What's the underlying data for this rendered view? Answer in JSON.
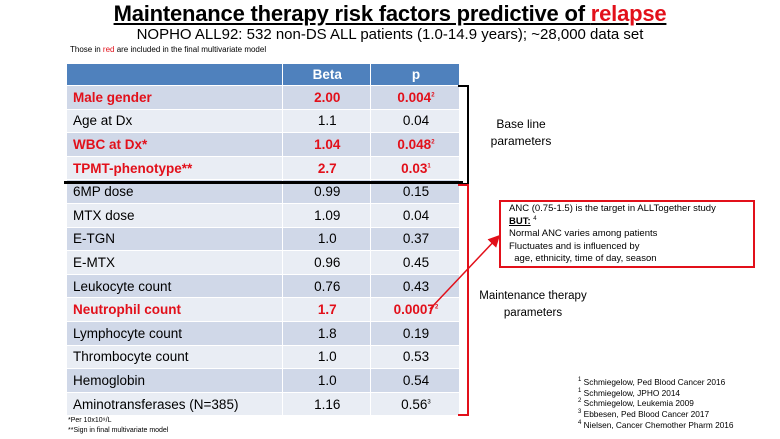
{
  "title": {
    "main": "Maintenance therapy risk factors predictive of ",
    "highlight": "relapse"
  },
  "subtitle": "NOPHO ALL92: 532 non-DS ALL patients (1.0-14.9 years); ~28,000 data set",
  "top_note": {
    "before": "Those in ",
    "highlight": "red",
    "after": " are included in the final multivariate model"
  },
  "table": {
    "headers": [
      "",
      "Beta",
      "p"
    ],
    "rows": [
      {
        "factor": "Male gender",
        "beta": "2.00",
        "p": "0.004",
        "sup": "2",
        "highlight": true
      },
      {
        "factor": "Age at Dx",
        "beta": "1.1",
        "p": "0.04",
        "sup": "",
        "highlight": false
      },
      {
        "factor": "WBC at Dx*",
        "beta": "1.04",
        "p": "0.048",
        "sup": "2",
        "highlight": true
      },
      {
        "factor": "TPMT-phenotype**",
        "beta": "2.7",
        "p": "0.03",
        "sup": "1",
        "highlight": true
      },
      {
        "factor": "6MP dose",
        "beta": "0.99",
        "p": "0.15",
        "sup": "",
        "highlight": false
      },
      {
        "factor": "MTX dose",
        "beta": "1.09",
        "p": "0.04",
        "sup": "",
        "highlight": false
      },
      {
        "factor": "E-TGN",
        "beta": "1.0",
        "p": "0.37",
        "sup": "",
        "highlight": false
      },
      {
        "factor": "E-MTX",
        "beta": "0.96",
        "p": "0.45",
        "sup": "",
        "highlight": false
      },
      {
        "factor": "Leukocyte count",
        "beta": "0.76",
        "p": "0.43",
        "sup": "",
        "highlight": false
      },
      {
        "factor": "Neutrophil count",
        "beta": "1.7",
        "p": "0.0007",
        "sup": "2",
        "highlight": true
      },
      {
        "factor": "Lymphocyte count",
        "beta": "1.8",
        "p": "0.19",
        "sup": "",
        "highlight": false
      },
      {
        "factor": "Thrombocyte count",
        "beta": "1.0",
        "p": "0.53",
        "sup": "",
        "highlight": false
      },
      {
        "factor": "Hemoglobin",
        "beta": "1.0",
        "p": "0.54",
        "sup": "",
        "highlight": false
      },
      {
        "factor": "Aminotransferases (N=385)",
        "beta": "1.16",
        "p": "0.56",
        "sup": "3",
        "highlight": false
      }
    ]
  },
  "labels": {
    "baseline_1": "Base line",
    "baseline_2": "parameters",
    "maintenance_1": "Maintenance therapy",
    "maintenance_2": "parameters"
  },
  "anc_box": {
    "line1": "ANC (0.75-1.5)  is the target in ALLTogether study",
    "but": "BUT:",
    "but_sup": "4",
    "line3": "Normal ANC varies among patients",
    "line4": "Fluctuates  and is influenced by",
    "line5": "  age, ethnicity, time of day, season"
  },
  "references": [
    {
      "num": "1",
      "text": "Schmiegelow, Ped Blood Cancer 2016"
    },
    {
      "num": "1",
      "text": "Schmiegelow, JPHO 2014"
    },
    {
      "num": "2",
      "text": "Schmiegelow, Leukemia 2009"
    },
    {
      "num": "3",
      "text": "Ebbesen, Ped Blood Cancer 2017"
    },
    {
      "num": "4",
      "text": "Nielsen, Cancer Chemother Pharm 2016"
    }
  ],
  "footnotes": {
    "star1": "*Per 10x10⁹/L",
    "star2": "**Sign in final multivariate  model"
  },
  "colors": {
    "accent_red": "#e2101a",
    "header_blue": "#4f81bd",
    "row_dark": "#d0d8e8",
    "row_light": "#e9edf4"
  }
}
